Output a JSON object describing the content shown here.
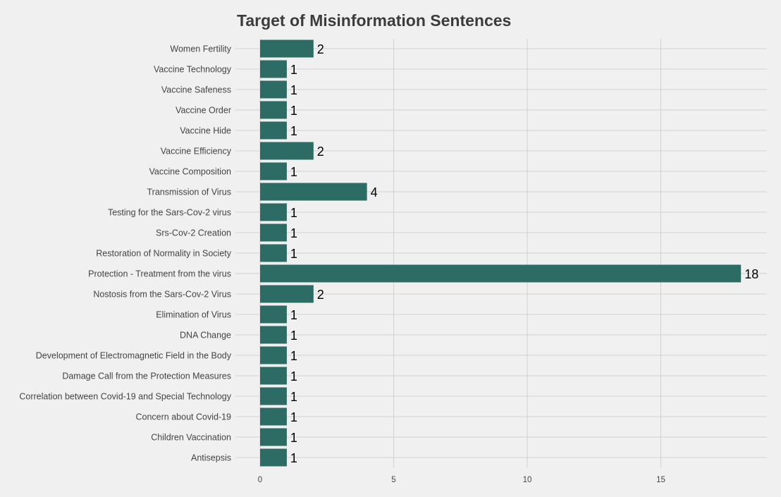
{
  "chart_data": {
    "type": "bar",
    "orientation": "horizontal",
    "title": "Target of Misinformation Sentences",
    "xlabel": "",
    "ylabel": "",
    "xlim": [
      0,
      19
    ],
    "xticks": [
      0,
      5,
      10,
      15
    ],
    "grid": true,
    "legend": "none",
    "bar_color": "#2d6b65",
    "background_color": "#f0f0f0",
    "grid_color": "#d2d2d2",
    "categories": [
      "Women Fertility",
      "Vaccine Technology",
      "Vaccine Safeness",
      "Vaccine Order",
      "Vaccine Hide",
      "Vaccine Efficiency",
      "Vaccine Composition",
      "Transmission of Virus",
      "Testing for the Sars-Cov-2 virus",
      "Srs-Cov-2 Creation",
      "Restoration of Normality in Society",
      "Protection - Treatment from the virus",
      "Nostosis from the Sars-Cov-2 Virus",
      "Elimination of Virus",
      "DNA Change",
      "Development of Electromagnetic Field in the Body",
      "Damage Call from the Protection Measures",
      "Correlation between Covid-19 and Special Technology",
      "Concern about Covid-19",
      "Children Vaccination",
      "Antisepsis"
    ],
    "values": [
      2,
      1,
      1,
      1,
      1,
      2,
      1,
      4,
      1,
      1,
      1,
      18,
      2,
      1,
      1,
      1,
      1,
      1,
      1,
      1,
      1
    ]
  }
}
